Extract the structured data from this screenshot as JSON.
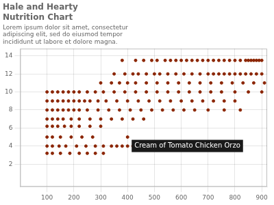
{
  "chart_data": {
    "type": "scatter",
    "title": [
      "Hale and Hearty",
      "Nutrition Chart"
    ],
    "subtitle": "Lorem ipsum dolor sit amet, consectetur\nadipiscing elit, sed do eiusmod tempor\nincididunt ut labore et dolore magna.",
    "color": "#8B2500",
    "grid": true,
    "xlim": [
      0,
      920
    ],
    "ylim": [
      -0.5,
      14.8
    ],
    "xticks": [
      100,
      200,
      300,
      400,
      500,
      600,
      700,
      800,
      900
    ],
    "yticks": [
      2,
      4,
      6,
      8,
      10,
      12,
      14
    ],
    "annotation": {
      "text": "Cream of Tomato Chicken Orzo",
      "x": 400,
      "y": 5.0
    },
    "x": [
      380,
      430,
      460,
      490,
      510,
      540,
      560,
      580,
      600,
      620,
      640,
      660,
      680,
      700,
      720,
      740,
      760,
      780,
      800,
      820,
      840,
      850,
      860,
      870,
      880,
      890,
      900,
      350,
      390,
      420,
      440,
      470,
      500,
      520,
      550,
      580,
      610,
      640,
      670,
      700,
      720,
      740,
      760,
      780,
      800,
      820,
      840,
      860,
      880,
      900,
      300,
      340,
      370,
      400,
      430,
      470,
      510,
      550,
      590,
      630,
      670,
      710,
      750,
      790,
      830,
      870,
      910,
      100,
      120,
      140,
      160,
      180,
      200,
      220,
      250,
      280,
      310,
      350,
      390,
      430,
      470,
      510,
      550,
      590,
      630,
      670,
      710,
      750,
      800,
      850,
      900,
      100,
      120,
      140,
      160,
      180,
      200,
      220,
      240,
      260,
      290,
      320,
      360,
      400,
      440,
      480,
      520,
      560,
      600,
      640,
      680,
      720,
      760,
      800,
      100,
      120,
      140,
      160,
      180,
      200,
      220,
      250,
      290,
      330,
      370,
      410,
      450,
      490,
      530,
      570,
      610,
      650,
      700,
      760,
      820,
      100,
      120,
      140,
      160,
      190,
      220,
      260,
      300,
      340,
      380,
      420,
      460,
      100,
      120,
      140,
      165,
      190,
      220,
      260,
      300,
      100,
      120,
      150,
      190,
      230,
      270,
      400,
      100,
      120,
      145,
      170,
      210,
      245,
      280,
      310,
      340,
      360,
      380,
      400,
      420,
      450,
      470,
      100,
      120,
      150,
      185,
      220,
      250,
      280,
      310
    ],
    "values": [
      13.5,
      13.5,
      13.5,
      13.5,
      13.5,
      13.5,
      13.5,
      13.5,
      13.5,
      13.5,
      13.5,
      13.5,
      13.5,
      13.5,
      13.5,
      13.5,
      13.5,
      13.5,
      13.5,
      13.5,
      13.5,
      13.5,
      13.5,
      13.5,
      13.5,
      13.5,
      13.5,
      12.0,
      12.0,
      12.0,
      12.0,
      12.0,
      12.0,
      12.0,
      12.0,
      12.0,
      12.0,
      12.0,
      12.0,
      12.0,
      12.0,
      12.0,
      12.0,
      12.0,
      12.0,
      12.0,
      12.0,
      12.0,
      12.0,
      12.0,
      11.0,
      11.0,
      11.0,
      11.0,
      11.0,
      11.0,
      11.0,
      11.0,
      11.0,
      11.0,
      11.0,
      11.0,
      11.0,
      11.0,
      11.0,
      11.0,
      11.0,
      10.0,
      10.0,
      10.0,
      10.0,
      10.0,
      10.0,
      10.0,
      10.0,
      10.0,
      10.0,
      10.0,
      10.0,
      10.0,
      10.0,
      10.0,
      10.0,
      10.0,
      10.0,
      10.0,
      10.0,
      10.0,
      10.0,
      10.0,
      10.0,
      9.0,
      9.0,
      9.0,
      9.0,
      9.0,
      9.0,
      9.0,
      9.0,
      9.0,
      9.0,
      9.0,
      9.0,
      9.0,
      9.0,
      9.0,
      9.0,
      9.0,
      9.0,
      9.0,
      9.0,
      9.0,
      9.0,
      9.0,
      8.0,
      8.0,
      8.0,
      8.0,
      8.0,
      8.0,
      8.0,
      8.0,
      8.0,
      8.0,
      8.0,
      8.0,
      8.0,
      8.0,
      8.0,
      8.0,
      8.0,
      8.0,
      8.0,
      8.0,
      8.0,
      7.0,
      7.0,
      7.0,
      7.0,
      7.0,
      7.0,
      7.0,
      7.0,
      7.0,
      7.0,
      7.0,
      7.0,
      6.2,
      6.2,
      6.2,
      6.2,
      6.2,
      6.2,
      6.2,
      6.2,
      5.0,
      5.0,
      5.0,
      5.0,
      5.0,
      5.0,
      5.0,
      4.0,
      4.0,
      4.0,
      4.0,
      4.0,
      4.0,
      4.0,
      4.0,
      4.0,
      4.0,
      4.0,
      4.0,
      4.0,
      4.0,
      4.0,
      3.2,
      3.2,
      3.2,
      3.2,
      3.2,
      3.2,
      3.2,
      3.2
    ]
  }
}
